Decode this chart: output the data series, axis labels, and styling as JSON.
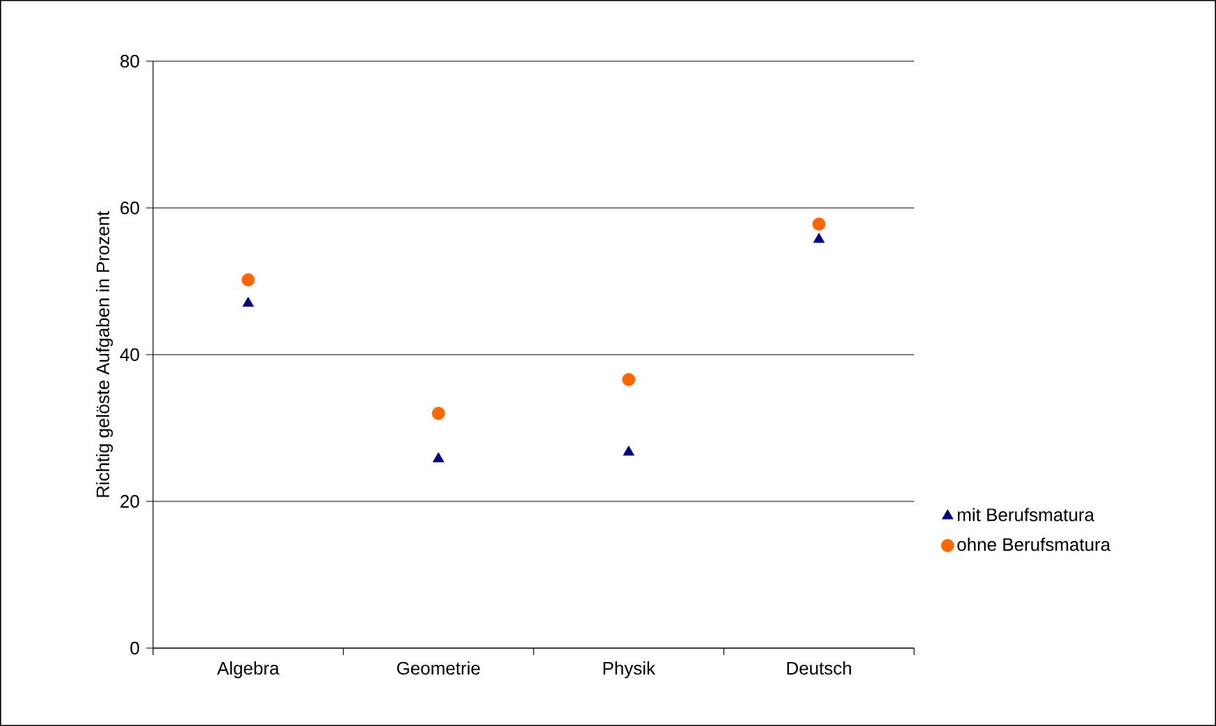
{
  "chart_data": {
    "type": "scatter",
    "ylabel": "Richtig gelöste Aufgaben in Prozent",
    "categories": [
      "Algebra",
      "Geometrie",
      "Physik",
      "Deutsch"
    ],
    "series": [
      {
        "name": "mit Berufsmatura",
        "color": "#000080",
        "marker": "triangle",
        "values": [
          47.0,
          25.8,
          26.7,
          55.7
        ]
      },
      {
        "name": "ohne Berufsmatura",
        "color": "#ff6600",
        "marker": "circle",
        "values": [
          50.2,
          32.0,
          36.6,
          57.8
        ]
      }
    ],
    "ylim": [
      0,
      80
    ],
    "yticks": [
      0,
      20,
      40,
      60,
      80
    ],
    "grid": "y",
    "legend": "right"
  }
}
